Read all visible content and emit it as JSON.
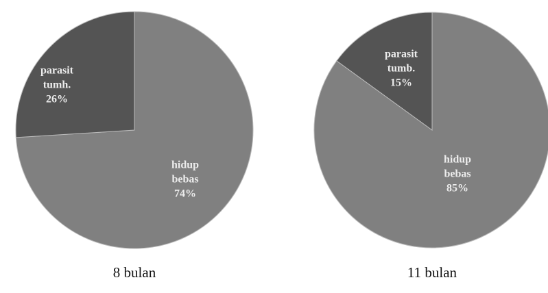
{
  "chart_data": [
    {
      "type": "pie",
      "title": "8 bulan",
      "categories": [
        "hidup bebas",
        "parasit tumh."
      ],
      "values": [
        74,
        26
      ],
      "value_labels": [
        "74%",
        "26%"
      ],
      "colors": [
        "#808080",
        "#545454"
      ]
    },
    {
      "type": "pie",
      "title": "11 bulan",
      "categories": [
        "hidup bebas",
        "parasit tumb."
      ],
      "values": [
        85,
        15
      ],
      "value_labels": [
        "85%",
        "15%"
      ],
      "colors": [
        "#808080",
        "#545454"
      ]
    }
  ]
}
